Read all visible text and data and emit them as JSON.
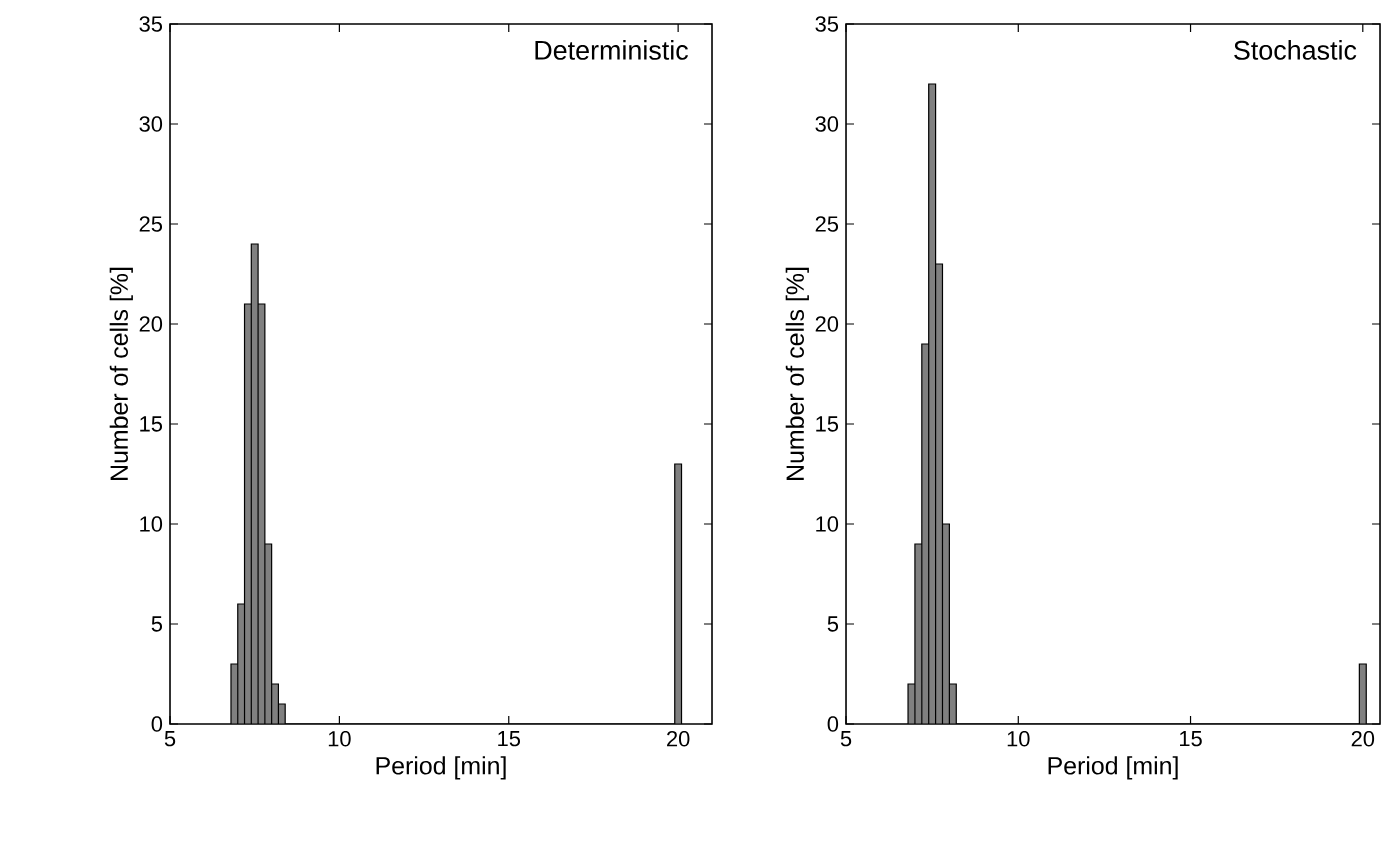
{
  "chart_data": [
    {
      "type": "histogram",
      "title": "Deterministic",
      "xlabel": "Period [min]",
      "ylabel": "Number of cells [%]",
      "color": "#808080",
      "bins": [
        6.8,
        7.0,
        7.2,
        7.4,
        7.6,
        7.8,
        8.0,
        8.2,
        8.4,
        19.9,
        20.1
      ],
      "values": [
        3,
        6,
        21,
        24,
        21,
        9,
        2,
        1,
        0,
        13
      ],
      "xlim": [
        5,
        21
      ],
      "ylim": [
        0,
        35
      ],
      "xticks": [
        5,
        10,
        15,
        20
      ],
      "yticks": [
        0,
        5,
        10,
        15,
        20,
        25,
        30,
        35
      ],
      "grid": false
    },
    {
      "type": "histogram",
      "title": "Stochastic",
      "xlabel": "Period [min]",
      "ylabel": "Number of cells [%]",
      "color": "#808080",
      "bins": [
        6.8,
        7.0,
        7.2,
        7.4,
        7.6,
        7.8,
        8.0,
        8.2,
        19.9,
        20.1
      ],
      "values": [
        2,
        9,
        19,
        32,
        23,
        10,
        2,
        0,
        3
      ],
      "xlim": [
        5,
        20.5
      ],
      "ylim": [
        0,
        35
      ],
      "xticks": [
        5,
        10,
        15,
        20
      ],
      "yticks": [
        0,
        5,
        10,
        15,
        20,
        25,
        30,
        35
      ],
      "grid": false
    }
  ]
}
